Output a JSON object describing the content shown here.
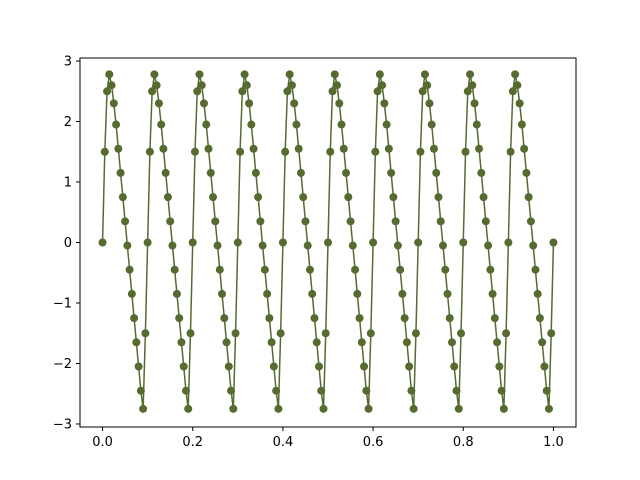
{
  "chart_data": {
    "type": "line",
    "x": [
      0,
      0.005,
      0.01,
      0.015,
      0.02,
      0.025,
      0.03,
      0.035,
      0.04,
      0.045,
      0.05,
      0.055,
      0.06,
      0.065,
      0.07,
      0.075,
      0.08,
      0.085,
      0.09,
      0.095,
      0.1,
      0.105,
      0.11,
      0.115,
      0.12,
      0.125,
      0.13,
      0.135,
      0.14,
      0.145,
      0.15,
      0.155,
      0.16,
      0.165,
      0.17,
      0.175,
      0.18,
      0.185,
      0.19,
      0.195,
      0.2,
      0.205,
      0.21,
      0.215,
      0.22,
      0.225,
      0.23,
      0.235,
      0.24,
      0.245,
      0.25,
      0.255,
      0.26,
      0.265,
      0.27,
      0.275,
      0.28,
      0.285,
      0.29,
      0.295,
      0.3,
      0.305,
      0.31,
      0.315,
      0.32,
      0.325,
      0.33,
      0.335,
      0.34,
      0.345,
      0.35,
      0.355,
      0.36,
      0.365,
      0.37,
      0.375,
      0.38,
      0.385,
      0.39,
      0.395,
      0.4,
      0.405,
      0.41,
      0.415,
      0.42,
      0.425,
      0.43,
      0.435,
      0.44,
      0.445,
      0.45,
      0.455,
      0.46,
      0.465,
      0.47,
      0.475,
      0.48,
      0.485,
      0.49,
      0.495,
      0.5,
      0.505,
      0.51,
      0.515,
      0.52,
      0.525,
      0.53,
      0.535,
      0.54,
      0.545,
      0.55,
      0.555,
      0.56,
      0.565,
      0.57,
      0.575,
      0.58,
      0.585,
      0.59,
      0.595,
      0.6,
      0.605,
      0.61,
      0.615,
      0.62,
      0.625,
      0.63,
      0.635,
      0.64,
      0.645,
      0.65,
      0.655,
      0.66,
      0.665,
      0.67,
      0.675,
      0.68,
      0.685,
      0.69,
      0.695,
      0.7,
      0.705,
      0.71,
      0.715,
      0.72,
      0.725,
      0.73,
      0.735,
      0.74,
      0.745,
      0.75,
      0.755,
      0.76,
      0.765,
      0.77,
      0.775,
      0.78,
      0.785,
      0.79,
      0.795,
      0.8,
      0.805,
      0.81,
      0.815,
      0.82,
      0.825,
      0.83,
      0.835,
      0.84,
      0.845,
      0.85,
      0.855,
      0.86,
      0.865,
      0.87,
      0.875,
      0.88,
      0.885,
      0.89,
      0.895,
      0.9,
      0.905,
      0.91,
      0.915,
      0.92,
      0.925,
      0.93,
      0.935,
      0.94,
      0.945,
      0.95,
      0.955,
      0.96,
      0.965,
      0.97,
      0.975,
      0.98,
      0.985,
      0.99,
      0.995,
      1.0
    ],
    "series": [
      {
        "color": "#556b2f",
        "values": [
          0,
          1.5,
          2.5,
          2.78,
          2.6,
          2.3,
          1.95,
          1.55,
          1.15,
          0.75,
          0.35,
          -0.05,
          -0.45,
          -0.85,
          -1.25,
          -1.65,
          -2.05,
          -2.45,
          -2.75,
          -1.5,
          0,
          1.5,
          2.5,
          2.78,
          2.6,
          2.3,
          1.95,
          1.55,
          1.15,
          0.75,
          0.35,
          -0.05,
          -0.45,
          -0.85,
          -1.25,
          -1.65,
          -2.05,
          -2.45,
          -2.75,
          -1.5,
          0,
          1.5,
          2.5,
          2.78,
          2.6,
          2.3,
          1.95,
          1.55,
          1.15,
          0.75,
          0.35,
          -0.05,
          -0.45,
          -0.85,
          -1.25,
          -1.65,
          -2.05,
          -2.45,
          -2.75,
          -1.5,
          0,
          1.5,
          2.5,
          2.78,
          2.6,
          2.3,
          1.95,
          1.55,
          1.15,
          0.75,
          0.35,
          -0.05,
          -0.45,
          -0.85,
          -1.25,
          -1.65,
          -2.05,
          -2.45,
          -2.75,
          -1.5,
          0,
          1.5,
          2.5,
          2.78,
          2.6,
          2.3,
          1.95,
          1.55,
          1.15,
          0.75,
          0.35,
          -0.05,
          -0.45,
          -0.85,
          -1.25,
          -1.65,
          -2.05,
          -2.45,
          -2.75,
          -1.5,
          0,
          1.5,
          2.5,
          2.78,
          2.6,
          2.3,
          1.95,
          1.55,
          1.15,
          0.75,
          0.35,
          -0.05,
          -0.45,
          -0.85,
          -1.25,
          -1.65,
          -2.05,
          -2.45,
          -2.75,
          -1.5,
          0,
          1.5,
          2.5,
          2.78,
          2.6,
          2.3,
          1.95,
          1.55,
          1.15,
          0.75,
          0.35,
          -0.05,
          -0.45,
          -0.85,
          -1.25,
          -1.65,
          -2.05,
          -2.45,
          -2.75,
          -1.5,
          0,
          1.5,
          2.5,
          2.78,
          2.6,
          2.3,
          1.95,
          1.55,
          1.15,
          0.75,
          0.35,
          -0.05,
          -0.45,
          -0.85,
          -1.25,
          -1.65,
          -2.05,
          -2.45,
          -2.75,
          -1.5,
          0,
          1.5,
          2.5,
          2.78,
          2.6,
          2.3,
          1.95,
          1.55,
          1.15,
          0.75,
          0.35,
          -0.05,
          -0.45,
          -0.85,
          -1.25,
          -1.65,
          -2.05,
          -2.45,
          -2.75,
          -1.5,
          0,
          1.5,
          2.5,
          2.78,
          2.6,
          2.3,
          1.95,
          1.55,
          1.15,
          0.75,
          0.35,
          -0.05,
          -0.45,
          -0.85,
          -1.25,
          -1.65,
          -2.05,
          -2.45,
          -2.75,
          -1.5,
          0
        ]
      }
    ],
    "xlim": [
      -0.05,
      1.05
    ],
    "xticks": [
      {
        "value": 0,
        "label": "0.0"
      },
      0.2,
      0.4,
      0.6,
      0.8,
      {
        "value": 1,
        "label": "1.0"
      }
    ],
    "ylim": [
      -3.05,
      3.05
    ],
    "yticks": [
      {
        "value": -3,
        "label": "−3"
      },
      {
        "value": -2,
        "label": "−2"
      },
      {
        "value": -1,
        "label": "−1"
      },
      0,
      1,
      2,
      3
    ],
    "grid": false
  }
}
